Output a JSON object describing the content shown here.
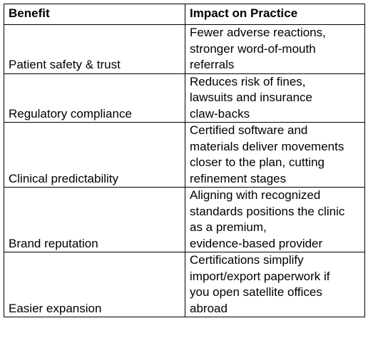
{
  "table": {
    "headers": [
      "Benefit",
      "Impact on Practice"
    ],
    "rows": [
      {
        "benefit": "Patient safety & trust",
        "impact_lines": [
          "Fewer adverse reactions,",
          "stronger word-of-mouth",
          "referrals"
        ]
      },
      {
        "benefit": "Regulatory compliance",
        "impact_lines": [
          "Reduces risk of fines,",
          "lawsuits and insurance",
          "claw-backs"
        ]
      },
      {
        "benefit": "Clinical predictability",
        "impact_lines": [
          "Certified software and",
          "materials deliver movements",
          "closer to the plan, cutting",
          "refinement stages"
        ]
      },
      {
        "benefit": "Brand reputation",
        "impact_lines": [
          "Aligning with recognized",
          "standards positions the clinic",
          "as a premium,",
          "evidence-based provider"
        ]
      },
      {
        "benefit": "Easier expansion",
        "impact_lines": [
          "Certifications simplify",
          "import/export paperwork if",
          "you open satellite offices",
          "abroad"
        ]
      }
    ]
  }
}
